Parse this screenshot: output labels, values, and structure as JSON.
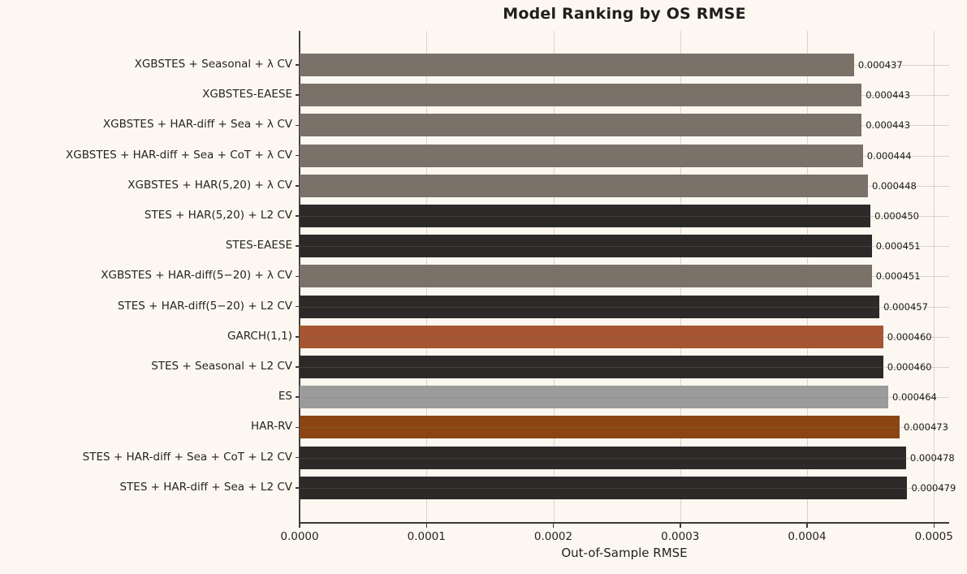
{
  "chart": {
    "title": "Model Ranking by OS RMSE",
    "xlabel": "Out-of-Sample RMSE"
  },
  "chart_data": {
    "type": "bar",
    "orientation": "horizontal",
    "title": "Model Ranking by OS RMSE",
    "xlabel": "Out-of-Sample RMSE",
    "ylabel": "",
    "xlim": [
      0,
      0.000512
    ],
    "xticks": [
      0.0,
      0.0001,
      0.0002,
      0.0003,
      0.0004,
      0.0005
    ],
    "xtick_labels": [
      "0.0000",
      "0.0001",
      "0.0002",
      "0.0003",
      "0.0004",
      "0.0005"
    ],
    "grid": true,
    "legend": null,
    "bars": [
      {
        "label": "XGBSTES + Seasonal + λ CV",
        "value": 0.000437,
        "value_label": "0.000437",
        "color": "#7a7169"
      },
      {
        "label": "XGBSTES-EAESE",
        "value": 0.000443,
        "value_label": "0.000443",
        "color": "#7a7169"
      },
      {
        "label": "XGBSTES + HAR-diff + Sea + λ CV",
        "value": 0.000443,
        "value_label": "0.000443",
        "color": "#7a7169"
      },
      {
        "label": "XGBSTES + HAR-diff + Sea + CoT + λ CV",
        "value": 0.000444,
        "value_label": "0.000444",
        "color": "#7a7169"
      },
      {
        "label": "XGBSTES + HAR(5,20) + λ CV",
        "value": 0.000448,
        "value_label": "0.000448",
        "color": "#7a7169"
      },
      {
        "label": "STES + HAR(5,20) + L2 CV",
        "value": 0.00045,
        "value_label": "0.000450",
        "color": "#2b2a28"
      },
      {
        "label": "STES-EAESE",
        "value": 0.000451,
        "value_label": "0.000451",
        "color": "#2b2a28"
      },
      {
        "label": "XGBSTES + HAR-diff(5−20) + λ CV",
        "value": 0.000451,
        "value_label": "0.000451",
        "color": "#7a7169"
      },
      {
        "label": "STES + HAR-diff(5−20) + L2 CV",
        "value": 0.000457,
        "value_label": "0.000457",
        "color": "#2b2a28"
      },
      {
        "label": "GARCH(1,1)",
        "value": 0.00046,
        "value_label": "0.000460",
        "color": "#a65532"
      },
      {
        "label": "STES + Seasonal + L2 CV",
        "value": 0.00046,
        "value_label": "0.000460",
        "color": "#2b2a28"
      },
      {
        "label": "ES",
        "value": 0.000464,
        "value_label": "0.000464",
        "color": "#9b9b9b"
      },
      {
        "label": "HAR-RV",
        "value": 0.000473,
        "value_label": "0.000473",
        "color": "#8a4513"
      },
      {
        "label": "STES + HAR-diff + Sea + CoT + L2 CV",
        "value": 0.000478,
        "value_label": "0.000478",
        "color": "#2b2a28"
      },
      {
        "label": "STES + HAR-diff + Sea + L2 CV",
        "value": 0.000479,
        "value_label": "0.000479",
        "color": "#2b2a28"
      }
    ],
    "colors": {
      "background": "#fcf8f1",
      "xgbstes_family": "#7a7169",
      "stes_family": "#2b2a28",
      "garch": "#a65532",
      "es": "#9b9b9b",
      "har_rv": "#8a4513"
    }
  }
}
